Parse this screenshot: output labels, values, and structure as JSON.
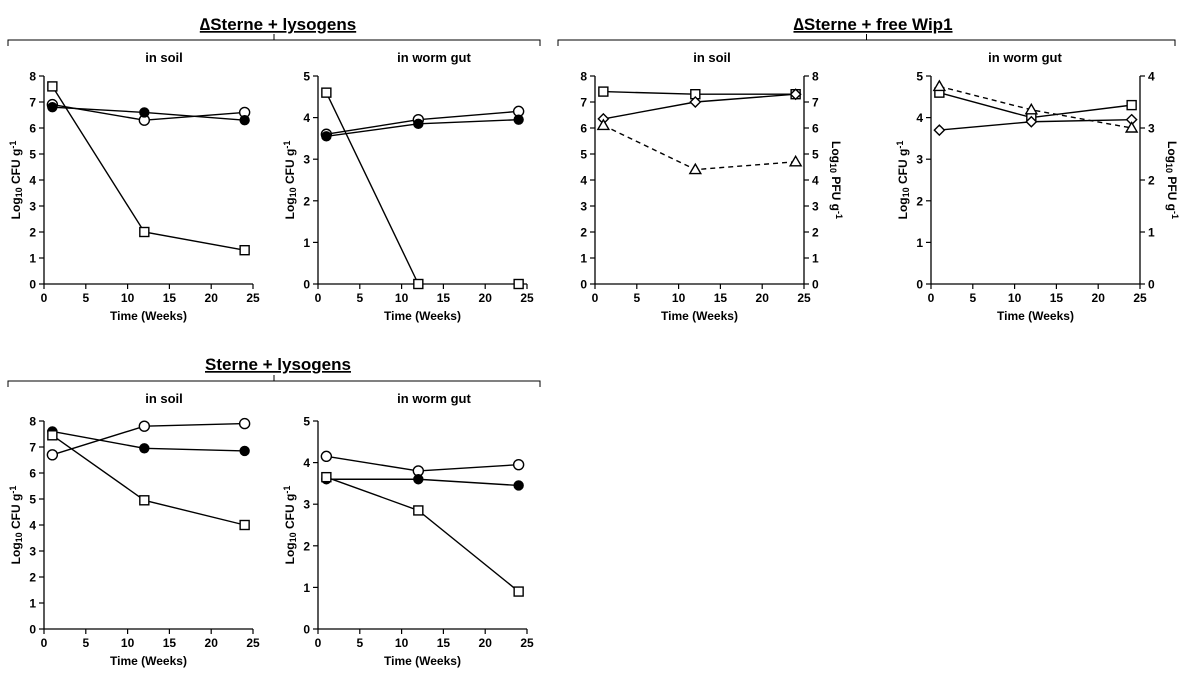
{
  "groups": [
    {
      "title": "∆Sterne + lysogens"
    },
    {
      "title": "∆Sterne + free Wip1"
    },
    {
      "title": "Sterne + lysogens"
    }
  ],
  "chart_data": [
    {
      "type": "line",
      "group": 0,
      "title": "in soil",
      "xlabel": "Time (Weeks)",
      "ylabel": "Log10 CFU g-1",
      "xlim": [
        0,
        25
      ],
      "ylim": [
        0,
        8
      ],
      "xticks": [
        0,
        5,
        10,
        15,
        20,
        25
      ],
      "yticks": [
        0,
        1,
        2,
        3,
        4,
        5,
        6,
        7,
        8
      ],
      "series": [
        {
          "marker": "circle-open",
          "dashed": false,
          "axis": "left",
          "x": [
            1,
            12,
            24
          ],
          "y": [
            6.9,
            6.3,
            6.6
          ]
        },
        {
          "marker": "circle-filled",
          "dashed": false,
          "axis": "left",
          "x": [
            1,
            12,
            24
          ],
          "y": [
            6.8,
            6.6,
            6.3
          ]
        },
        {
          "marker": "square-open",
          "dashed": false,
          "axis": "left",
          "x": [
            1,
            12,
            24
          ],
          "y": [
            7.6,
            2.0,
            1.3
          ]
        }
      ]
    },
    {
      "type": "line",
      "group": 0,
      "title": "in worm gut",
      "xlabel": "Time (Weeks)",
      "ylabel": "Log10 CFU g-1",
      "xlim": [
        0,
        25
      ],
      "ylim": [
        0,
        5
      ],
      "xticks": [
        0,
        5,
        10,
        15,
        20,
        25
      ],
      "yticks": [
        0,
        1,
        2,
        3,
        4,
        5
      ],
      "series": [
        {
          "marker": "circle-open",
          "dashed": false,
          "axis": "left",
          "x": [
            1,
            12,
            24
          ],
          "y": [
            3.6,
            3.95,
            4.15
          ]
        },
        {
          "marker": "circle-filled",
          "dashed": false,
          "axis": "left",
          "x": [
            1,
            12,
            24
          ],
          "y": [
            3.55,
            3.85,
            3.95
          ]
        },
        {
          "marker": "square-open",
          "dashed": false,
          "axis": "left",
          "x": [
            1,
            12
          ],
          "y": [
            4.6,
            0.0
          ]
        },
        {
          "marker": "square-open",
          "dashed": false,
          "axis": "left",
          "x": [
            24
          ],
          "y": [
            0.0
          ]
        }
      ]
    },
    {
      "type": "line",
      "group": 1,
      "title": "in soil",
      "xlabel": "Time (Weeks)",
      "ylabel": "",
      "y2label": "Log10 PFU g-1",
      "xlim": [
        0,
        25
      ],
      "ylim": [
        0,
        8
      ],
      "y2lim": [
        0,
        8
      ],
      "xticks": [
        0,
        5,
        10,
        15,
        20,
        25
      ],
      "yticks": [
        0,
        1,
        2,
        3,
        4,
        5,
        6,
        7,
        8
      ],
      "y2ticks": [
        0,
        1,
        2,
        3,
        4,
        5,
        6,
        7,
        8
      ],
      "series": [
        {
          "marker": "square-open",
          "dashed": false,
          "axis": "left",
          "x": [
            1,
            12,
            24
          ],
          "y": [
            7.4,
            7.3,
            7.3
          ]
        },
        {
          "marker": "diamond-open",
          "dashed": false,
          "axis": "left",
          "x": [
            1,
            12,
            24
          ],
          "y": [
            6.35,
            7.0,
            7.3
          ]
        },
        {
          "marker": "triangle-open",
          "dashed": true,
          "axis": "right",
          "x": [
            1,
            12,
            24
          ],
          "y": [
            6.1,
            4.4,
            4.7
          ]
        }
      ]
    },
    {
      "type": "line",
      "group": 1,
      "title": "in worm gut",
      "xlabel": "Time (Weeks)",
      "ylabel": "Log10 CFU g-1",
      "y2label": "Log10 PFU g-1",
      "xlim": [
        0,
        25
      ],
      "ylim": [
        0,
        5
      ],
      "y2lim": [
        0,
        4
      ],
      "xticks": [
        0,
        5,
        10,
        15,
        20,
        25
      ],
      "yticks": [
        0,
        1,
        2,
        3,
        4,
        5
      ],
      "y2ticks": [
        0,
        1,
        2,
        3,
        4
      ],
      "series": [
        {
          "marker": "square-open",
          "dashed": false,
          "axis": "left",
          "x": [
            1,
            12,
            24
          ],
          "y": [
            4.6,
            4.0,
            4.3
          ]
        },
        {
          "marker": "diamond-open",
          "dashed": false,
          "axis": "left",
          "x": [
            1,
            12,
            24
          ],
          "y": [
            3.7,
            3.9,
            3.95
          ]
        },
        {
          "marker": "triangle-open",
          "dashed": true,
          "axis": "right",
          "x": [
            1,
            12,
            24
          ],
          "y": [
            3.8,
            3.35,
            3.0
          ]
        }
      ]
    },
    {
      "type": "line",
      "group": 2,
      "title": "in soil",
      "xlabel": "Time (Weeks)",
      "ylabel": "Log10 CFU g-1",
      "xlim": [
        0,
        25
      ],
      "ylim": [
        0,
        8
      ],
      "xticks": [
        0,
        5,
        10,
        15,
        20,
        25
      ],
      "yticks": [
        0,
        1,
        2,
        3,
        4,
        5,
        6,
        7,
        8
      ],
      "series": [
        {
          "marker": "circle-open",
          "dashed": false,
          "axis": "left",
          "x": [
            1,
            12,
            24
          ],
          "y": [
            6.7,
            7.8,
            7.9
          ]
        },
        {
          "marker": "circle-filled",
          "dashed": false,
          "axis": "left",
          "x": [
            1,
            12,
            24
          ],
          "y": [
            7.6,
            6.95,
            6.85
          ]
        },
        {
          "marker": "square-open",
          "dashed": false,
          "axis": "left",
          "x": [
            1,
            12,
            24
          ],
          "y": [
            7.45,
            4.95,
            4.0
          ]
        }
      ]
    },
    {
      "type": "line",
      "group": 2,
      "title": "in worm gut",
      "xlabel": "Time (Weeks)",
      "ylabel": "Log10 CFU g-1",
      "xlim": [
        0,
        25
      ],
      "ylim": [
        0,
        5
      ],
      "xticks": [
        0,
        5,
        10,
        15,
        20,
        25
      ],
      "yticks": [
        0,
        1,
        2,
        3,
        4,
        5
      ],
      "series": [
        {
          "marker": "circle-open",
          "dashed": false,
          "axis": "left",
          "x": [
            1,
            12,
            24
          ],
          "y": [
            4.15,
            3.8,
            3.95
          ]
        },
        {
          "marker": "circle-filled",
          "dashed": false,
          "axis": "left",
          "x": [
            1,
            12,
            24
          ],
          "y": [
            3.6,
            3.6,
            3.45
          ]
        },
        {
          "marker": "square-open",
          "dashed": false,
          "axis": "left",
          "x": [
            1,
            12,
            24
          ],
          "y": [
            3.65,
            2.85,
            0.9
          ]
        }
      ]
    }
  ]
}
